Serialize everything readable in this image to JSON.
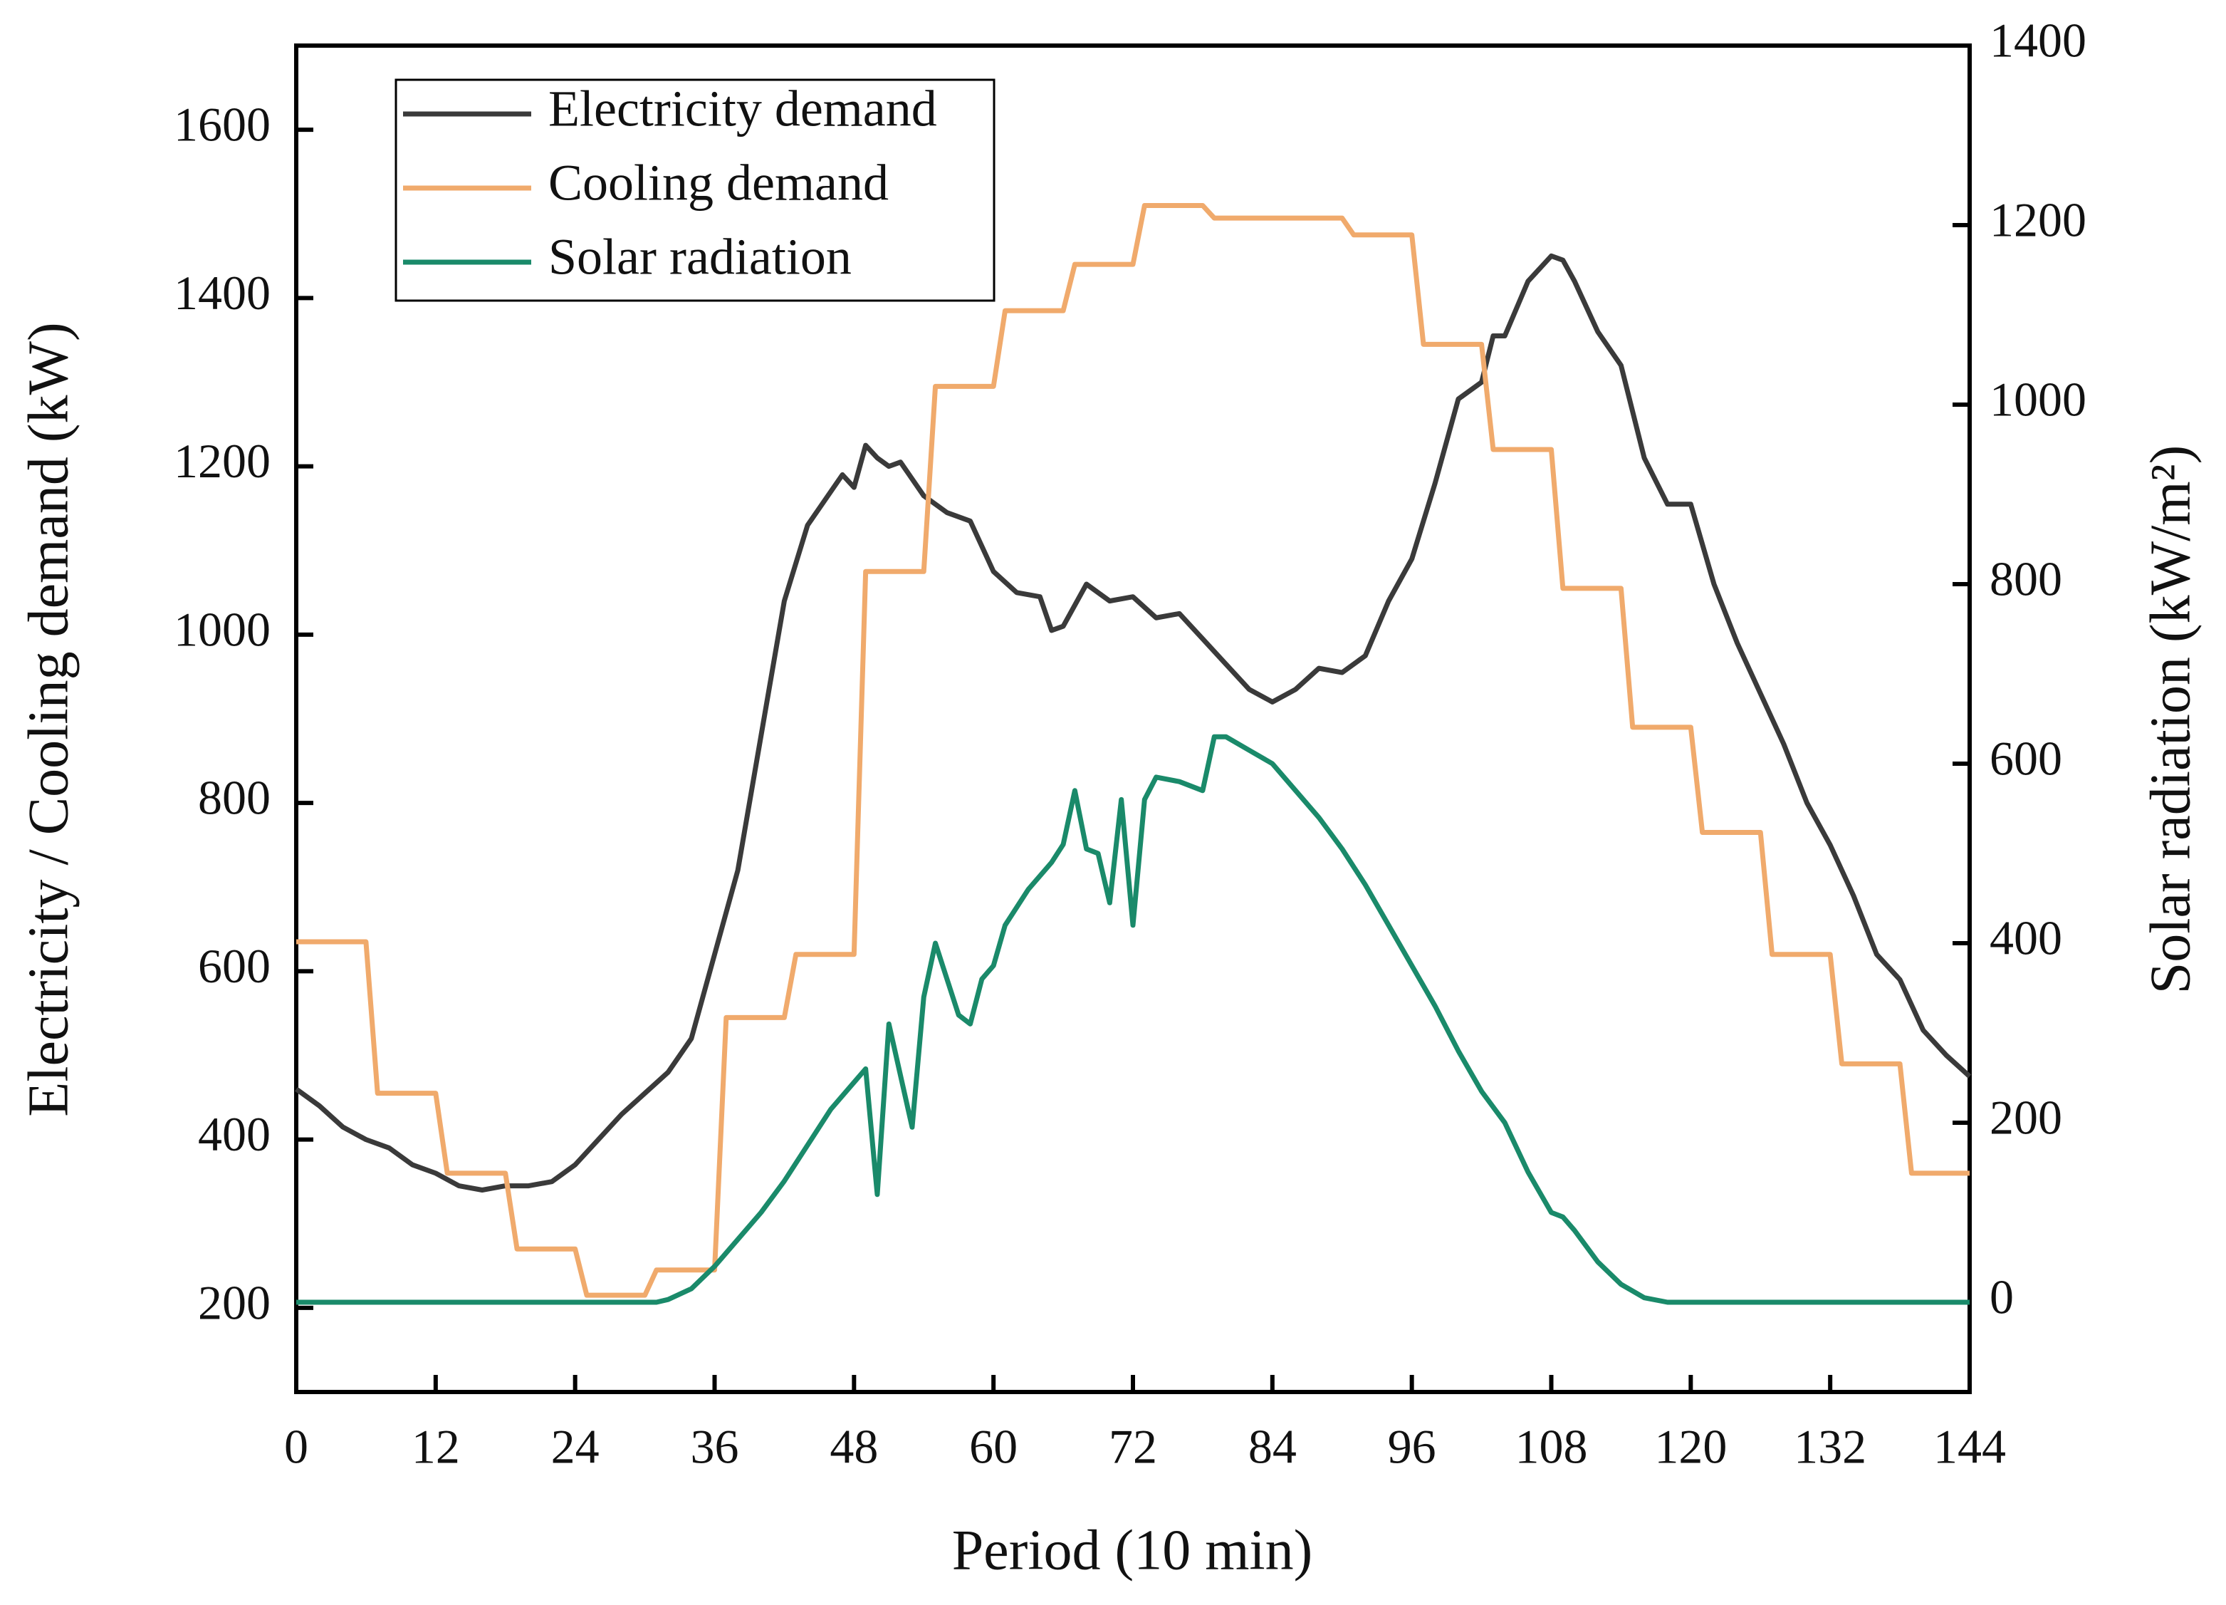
{
  "chart_data": {
    "type": "line",
    "xlabel": "Period (10 min)",
    "ylabel": "Electricity / Cooling demand (kW)",
    "y2label": "Solar radiation (kW/m²)",
    "xlim": [
      0,
      144
    ],
    "xticks": [
      0,
      12,
      24,
      36,
      48,
      60,
      72,
      84,
      96,
      108,
      120,
      132,
      144
    ],
    "ylim": [
      100,
      1700
    ],
    "yticks": [
      200,
      400,
      600,
      800,
      1000,
      1200,
      1400,
      1600
    ],
    "y2lim": [
      -100,
      1400
    ],
    "y2ticks": [
      0,
      200,
      400,
      600,
      800,
      1000,
      1200,
      1400
    ],
    "legend": "upper left",
    "series": [
      {
        "name": "Electricity demand",
        "color": "#3a3a3a",
        "x": [
          0,
          2,
          4,
          6,
          8,
          10,
          12,
          14,
          16,
          18,
          20,
          22,
          24,
          26,
          28,
          30,
          32,
          34,
          36,
          38,
          40,
          42,
          44,
          46,
          47,
          48,
          49,
          50,
          51,
          52,
          54,
          56,
          58,
          60,
          62,
          64,
          65,
          66,
          68,
          70,
          72,
          74,
          76,
          78,
          80,
          82,
          84,
          86,
          88,
          90,
          92,
          94,
          96,
          98,
          100,
          102,
          103,
          104,
          106,
          108,
          109,
          110,
          112,
          114,
          116,
          118,
          120,
          122,
          124,
          126,
          128,
          130,
          132,
          134,
          136,
          138,
          140,
          142,
          144
        ],
        "values": [
          460,
          440,
          415,
          400,
          390,
          370,
          360,
          345,
          340,
          345,
          345,
          350,
          370,
          400,
          430,
          455,
          480,
          520,
          620,
          720,
          880,
          1040,
          1130,
          1170,
          1190,
          1175,
          1225,
          1210,
          1200,
          1205,
          1165,
          1145,
          1135,
          1075,
          1050,
          1045,
          1005,
          1010,
          1060,
          1040,
          1045,
          1020,
          1025,
          995,
          965,
          935,
          920,
          935,
          960,
          955,
          975,
          1040,
          1090,
          1180,
          1280,
          1300,
          1355,
          1355,
          1420,
          1450,
          1445,
          1420,
          1360,
          1320,
          1210,
          1155,
          1155,
          1060,
          990,
          930,
          870,
          800,
          750,
          690,
          620,
          590,
          530,
          500,
          475
        ]
      },
      {
        "name": "Cooling demand",
        "color": "#f0aa6c",
        "x": [
          0,
          6,
          7,
          12,
          13,
          18,
          19,
          24,
          25,
          30,
          31,
          36,
          37,
          42,
          43,
          48,
          49,
          54,
          55,
          60,
          61,
          66,
          67,
          72,
          73,
          78,
          79,
          90,
          91,
          96,
          97,
          102,
          103,
          108,
          109,
          114,
          115,
          120,
          121,
          126,
          127,
          132,
          133,
          138,
          139,
          144
        ],
        "values": [
          635,
          635,
          455,
          455,
          360,
          360,
          270,
          270,
          215,
          215,
          245,
          245,
          545,
          545,
          620,
          620,
          1075,
          1075,
          1295,
          1295,
          1385,
          1385,
          1440,
          1440,
          1510,
          1510,
          1495,
          1495,
          1475,
          1475,
          1345,
          1345,
          1220,
          1220,
          1055,
          1055,
          890,
          890,
          765,
          765,
          620,
          620,
          490,
          490,
          360,
          360
        ]
      },
      {
        "name": "Solar radiation",
        "color": "#1a8a6a",
        "axis": "y2",
        "x": [
          0,
          31,
          32,
          34,
          36,
          38,
          40,
          42,
          44,
          46,
          48,
          49,
          50,
          51,
          53,
          54,
          55,
          56,
          57,
          58,
          59,
          60,
          61,
          63,
          65,
          66,
          67,
          68,
          69,
          70,
          71,
          72,
          73,
          74,
          76,
          78,
          79,
          80,
          82,
          84,
          86,
          88,
          90,
          92,
          94,
          96,
          98,
          100,
          102,
          104,
          106,
          108,
          109,
          110,
          112,
          114,
          116,
          118,
          144
        ],
        "values": [
          0,
          0,
          3,
          15,
          40,
          70,
          100,
          135,
          175,
          215,
          245,
          260,
          120,
          310,
          195,
          340,
          400,
          360,
          320,
          310,
          360,
          375,
          420,
          460,
          490,
          510,
          570,
          505,
          500,
          445,
          560,
          420,
          560,
          585,
          580,
          570,
          630,
          630,
          615,
          600,
          570,
          540,
          505,
          465,
          420,
          375,
          330,
          280,
          235,
          200,
          145,
          100,
          95,
          80,
          45,
          20,
          5,
          0,
          0
        ]
      }
    ]
  }
}
